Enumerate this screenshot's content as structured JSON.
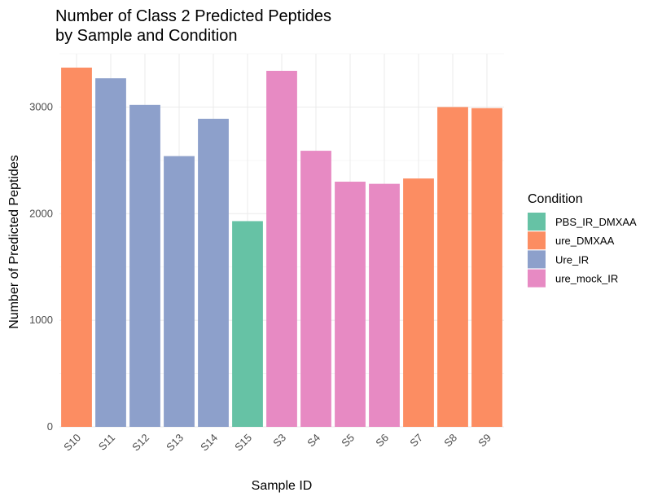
{
  "chart_data": {
    "type": "bar",
    "title": [
      "Number of Class 2 Predicted Peptides",
      "by Sample and Condition"
    ],
    "xlabel": "Sample ID",
    "ylabel": "Number of Predicted Peptides",
    "categories": [
      "S10",
      "S11",
      "S12",
      "S13",
      "S14",
      "S15",
      "S3",
      "S4",
      "S5",
      "S6",
      "S7",
      "S8",
      "S9"
    ],
    "values": [
      3370,
      3270,
      3020,
      2540,
      2890,
      1930,
      3340,
      2590,
      2300,
      2280,
      2330,
      3000,
      2990
    ],
    "conditions": [
      "ure_DMXAA",
      "Ure_IR",
      "Ure_IR",
      "Ure_IR",
      "Ure_IR",
      "PBS_IR_DMXAA",
      "ure_mock_IR",
      "ure_mock_IR",
      "ure_mock_IR",
      "ure_mock_IR",
      "ure_DMXAA",
      "ure_DMXAA",
      "ure_DMXAA"
    ],
    "ylim": [
      0,
      3500
    ],
    "yticks": [
      0,
      1000,
      2000,
      3000
    ],
    "grid": true,
    "legend": {
      "title": "Condition",
      "placement": "right",
      "entries": [
        {
          "name": "PBS_IR_DMXAA",
          "color": "#66c2a5"
        },
        {
          "name": "ure_DMXAA",
          "color": "#fc8d62"
        },
        {
          "name": "Ure_IR",
          "color": "#8da0cb"
        },
        {
          "name": "ure_mock_IR",
          "color": "#e78ac3"
        }
      ]
    }
  }
}
